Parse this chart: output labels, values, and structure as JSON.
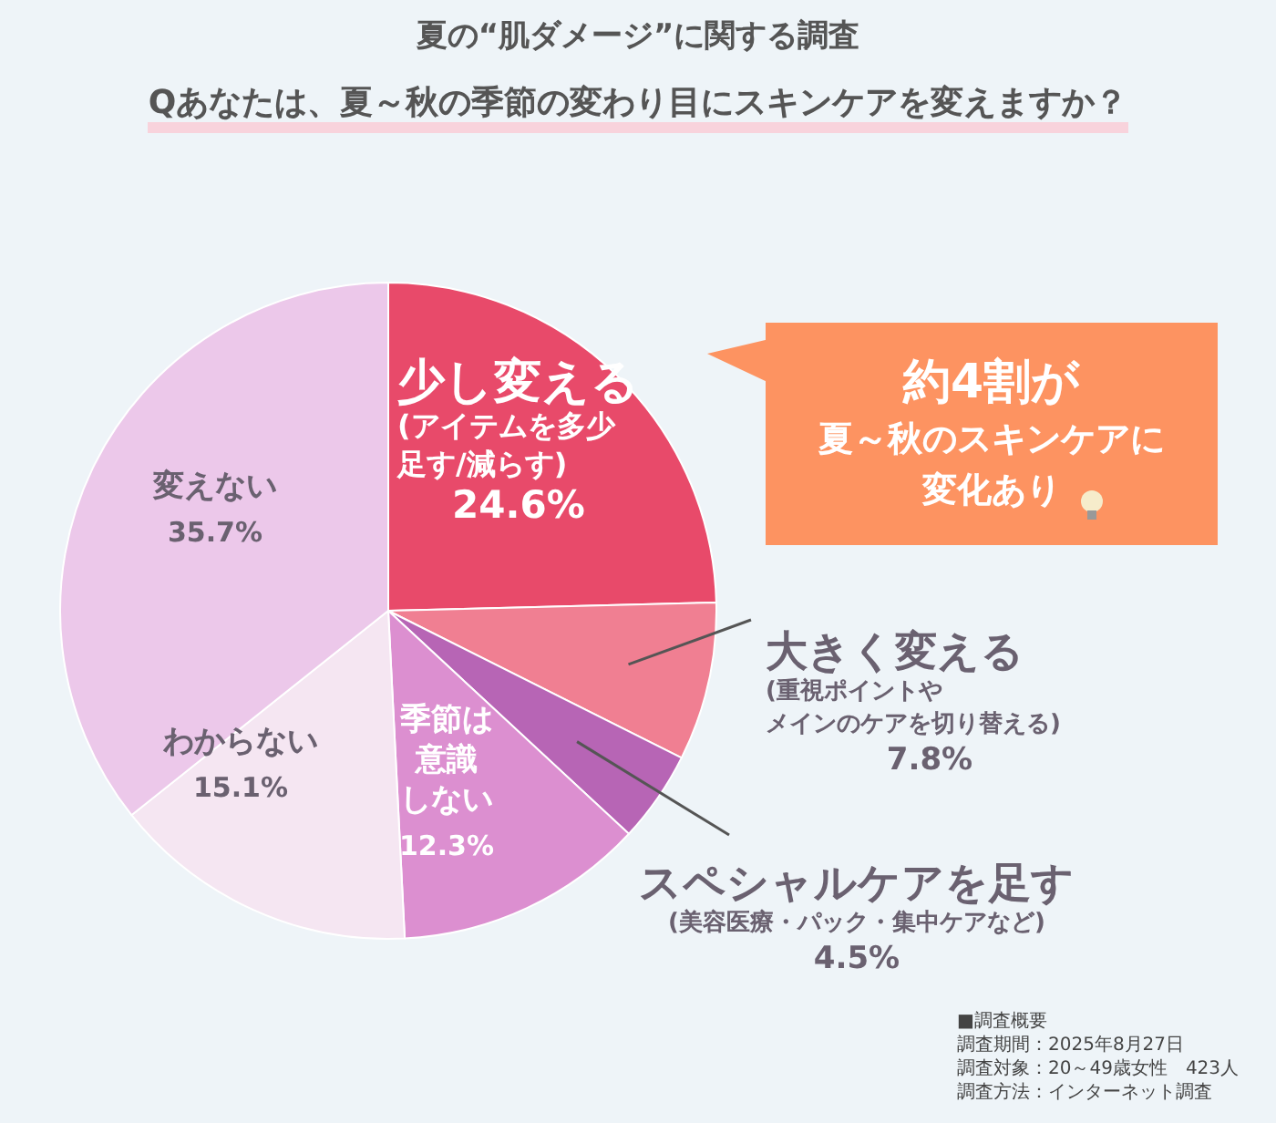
{
  "chart_data": {
    "type": "pie",
    "title": "夏の“肌ダメージ”に関する調査",
    "subtitle": "Qあなたは、夏～秋の季節の変わり目にスキンケアを変えますか？",
    "categories": [
      "少し変える(アイテムを多少足す/減らす)",
      "大きく変える(重視ポイントやメインのケアを切り替える)",
      "スペシャルケアを足す(美容医療・パック・集中ケアなど)",
      "季節は意識しない",
      "わからない",
      "変えない"
    ],
    "values": [
      24.6,
      7.8,
      4.5,
      12.3,
      15.1,
      35.7
    ],
    "value_labels": [
      "24.6%",
      "7.8%",
      "4.5%",
      "12.3%",
      "15.1%",
      "35.7%"
    ],
    "colors": [
      "#e84a6a",
      "#f07f92",
      "#b765b5",
      "#dc8fd0",
      "#f5e6f2",
      "#ecc8ea"
    ],
    "annotations": [
      "約4割が夏～秋のスキンケアに変化あり",
      "■調査概要",
      "調査期間：2025年8月27日",
      "調査対象：20～49歳女性　423人",
      "調査方法：インターネット調査"
    ]
  }
}
